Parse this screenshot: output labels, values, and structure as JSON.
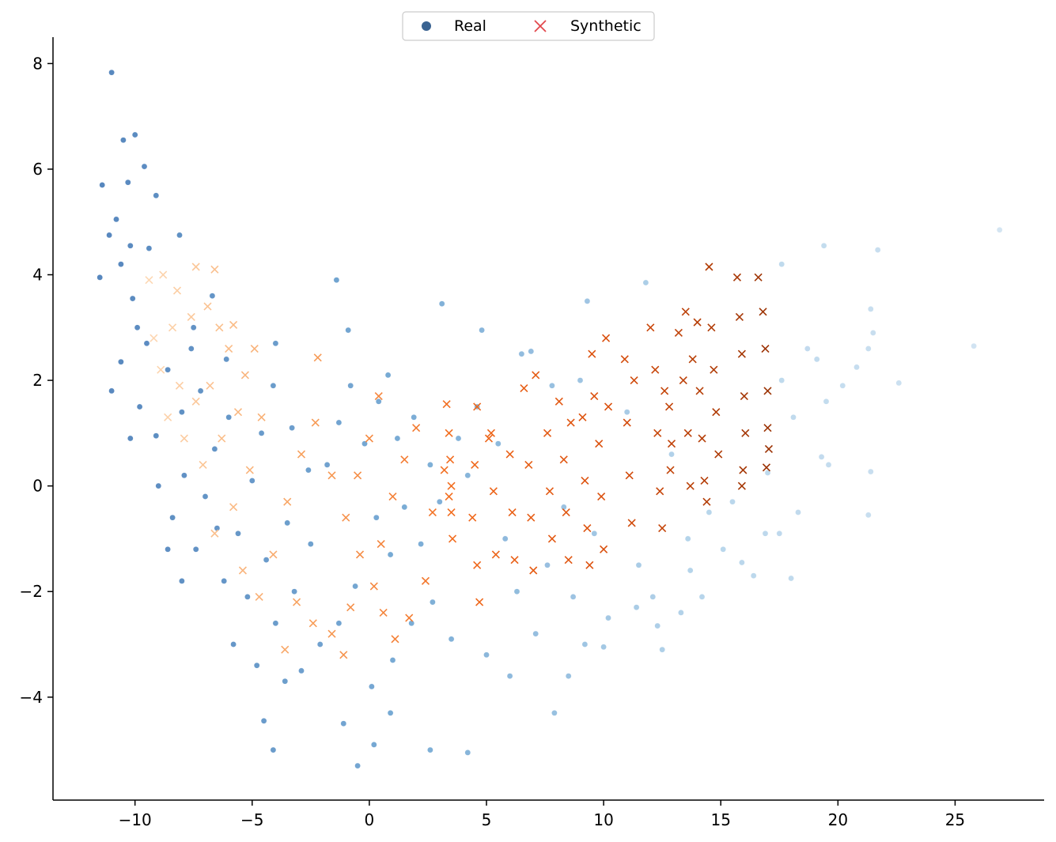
{
  "chart_data": {
    "type": "scatter",
    "title": "",
    "xlabel": "",
    "ylabel": "",
    "xlim": [
      -13.5,
      28.8
    ],
    "ylim": [
      -5.95,
      8.5
    ],
    "x_ticks": [
      -10,
      -5,
      0,
      5,
      10,
      15,
      20,
      25
    ],
    "y_ticks": [
      -4,
      -2,
      0,
      2,
      4,
      6,
      8
    ],
    "x_tick_labels": [
      "−10",
      "−5",
      "0",
      "5",
      "10",
      "15",
      "20",
      "25"
    ],
    "y_tick_labels": [
      "−4",
      "−2",
      "0",
      "2",
      "4",
      "6",
      "8"
    ],
    "grid": false,
    "legend": {
      "placement": "top-center",
      "entries": [
        {
          "label": "Real",
          "marker": "circle",
          "color": "#3a6391"
        },
        {
          "label": "Synthetic",
          "marker": "x",
          "color": "#e2474c"
        }
      ]
    },
    "colors": {
      "real_dark": "#1f5fa8",
      "real_light": "#c6dcee",
      "synthetic_light": "#fdd9b5",
      "synthetic_mid": "#f26b1d",
      "synthetic_dark": "#9b3203"
    },
    "series": [
      {
        "name": "Real",
        "marker": "circle",
        "points": [
          [
            -11,
            7.83
          ],
          [
            -10.5,
            6.55
          ],
          [
            -10,
            6.65
          ],
          [
            -9.6,
            6.05
          ],
          [
            -10.3,
            5.75
          ],
          [
            -11.4,
            5.7
          ],
          [
            -9.1,
            5.5
          ],
          [
            -10.8,
            5.05
          ],
          [
            -10.2,
            4.55
          ],
          [
            -8.1,
            4.75
          ],
          [
            -11.1,
            4.75
          ],
          [
            -9.4,
            4.5
          ],
          [
            -10.6,
            4.2
          ],
          [
            -11.5,
            3.95
          ],
          [
            -10.1,
            3.55
          ],
          [
            -9.9,
            3.0
          ],
          [
            -10.6,
            2.35
          ],
          [
            -11.0,
            1.8
          ],
          [
            -9.5,
            2.7
          ],
          [
            -8.6,
            2.2
          ],
          [
            -9.8,
            1.5
          ],
          [
            -10.2,
            0.9
          ],
          [
            -9.1,
            0.95
          ],
          [
            -8.0,
            1.4
          ],
          [
            -7.6,
            2.6
          ],
          [
            -7.2,
            1.8
          ],
          [
            -7.9,
            0.2
          ],
          [
            -9.0,
            0.0
          ],
          [
            -8.4,
            -0.6
          ],
          [
            -7.0,
            -0.2
          ],
          [
            -6.6,
            0.7
          ],
          [
            -6.0,
            1.3
          ],
          [
            -6.5,
            -0.8
          ],
          [
            -7.4,
            -1.2
          ],
          [
            -8.6,
            -1.2
          ],
          [
            -8.0,
            -1.8
          ],
          [
            -6.2,
            -1.8
          ],
          [
            -5.6,
            -0.9
          ],
          [
            -5.0,
            0.1
          ],
          [
            -4.6,
            1.0
          ],
          [
            -4.1,
            1.9
          ],
          [
            -3.3,
            1.1
          ],
          [
            -2.6,
            0.3
          ],
          [
            -3.5,
            -0.7
          ],
          [
            -4.4,
            -1.4
          ],
          [
            -5.2,
            -2.1
          ],
          [
            -5.8,
            -3.0
          ],
          [
            -4.8,
            -3.4
          ],
          [
            -4.0,
            -2.6
          ],
          [
            -3.2,
            -2.0
          ],
          [
            -2.5,
            -1.1
          ],
          [
            -1.8,
            0.4
          ],
          [
            -1.3,
            1.2
          ],
          [
            -0.8,
            1.9
          ],
          [
            -1.4,
            3.9
          ],
          [
            -0.9,
            2.95
          ],
          [
            -4.0,
            2.7
          ],
          [
            -6.1,
            2.4
          ],
          [
            -6.7,
            3.6
          ],
          [
            -7.5,
            3.0
          ],
          [
            -0.2,
            0.8
          ],
          [
            0.4,
            1.6
          ],
          [
            0.8,
            2.1
          ],
          [
            1.2,
            0.9
          ],
          [
            1.9,
            1.3
          ],
          [
            2.6,
            0.4
          ],
          [
            0.3,
            -0.6
          ],
          [
            0.9,
            -1.3
          ],
          [
            1.5,
            -0.4
          ],
          [
            2.2,
            -1.1
          ],
          [
            3.0,
            -0.3
          ],
          [
            3.8,
            0.9
          ],
          [
            -0.6,
            -1.9
          ],
          [
            -1.3,
            -2.6
          ],
          [
            -2.1,
            -3.0
          ],
          [
            -2.9,
            -3.5
          ],
          [
            -3.6,
            -3.7
          ],
          [
            -4.5,
            -4.45
          ],
          [
            -4.1,
            -5.0
          ],
          [
            -1.1,
            -4.5
          ],
          [
            -0.5,
            -5.3
          ],
          [
            0.2,
            -4.9
          ],
          [
            0.9,
            -4.3
          ],
          [
            2.6,
            -5.0
          ],
          [
            4.2,
            -5.05
          ],
          [
            0.1,
            -3.8
          ],
          [
            1.0,
            -3.3
          ],
          [
            1.8,
            -2.6
          ],
          [
            2.7,
            -2.2
          ],
          [
            3.5,
            -2.9
          ],
          [
            3.1,
            3.45
          ],
          [
            4.8,
            2.95
          ],
          [
            4.6,
            1.5
          ],
          [
            4.2,
            0.2
          ],
          [
            5.5,
            0.8
          ],
          [
            5.8,
            -1.0
          ],
          [
            6.3,
            -2.0
          ],
          [
            5.0,
            -3.2
          ],
          [
            6.0,
            -3.6
          ],
          [
            7.1,
            -2.8
          ],
          [
            7.6,
            -1.5
          ],
          [
            8.3,
            -0.4
          ],
          [
            6.5,
            2.5
          ],
          [
            7.8,
            1.9
          ],
          [
            9.3,
            3.5
          ],
          [
            9.0,
            2.0
          ],
          [
            9.6,
            -0.9
          ],
          [
            10.2,
            -2.5
          ],
          [
            9.2,
            -3.0
          ],
          [
            8.5,
            -3.6
          ],
          [
            7.9,
            -4.3
          ],
          [
            10.0,
            -3.05
          ],
          [
            11.0,
            1.4
          ],
          [
            11.5,
            -1.5
          ],
          [
            12.1,
            -2.1
          ],
          [
            12.3,
            -2.65
          ],
          [
            12.5,
            -3.1
          ],
          [
            13.3,
            -2.4
          ],
          [
            11.8,
            3.85
          ],
          [
            12.9,
            0.6
          ],
          [
            13.6,
            -1.0
          ],
          [
            14.5,
            -0.5
          ],
          [
            15.1,
            -1.2
          ],
          [
            15.5,
            -0.3
          ],
          [
            15.9,
            -1.45
          ],
          [
            16.4,
            -1.7
          ],
          [
            17.0,
            0.25
          ],
          [
            17.5,
            -0.9
          ],
          [
            17.6,
            4.2
          ],
          [
            17.6,
            2.0
          ],
          [
            18.1,
            1.3
          ],
          [
            18.3,
            -0.5
          ],
          [
            18.7,
            2.6
          ],
          [
            19.1,
            2.4
          ],
          [
            19.4,
            4.55
          ],
          [
            19.5,
            1.6
          ],
          [
            19.6,
            0.4
          ],
          [
            19.3,
            0.55
          ],
          [
            20.2,
            1.9
          ],
          [
            20.8,
            2.25
          ],
          [
            21.3,
            2.6
          ],
          [
            21.4,
            3.35
          ],
          [
            21.5,
            2.9
          ],
          [
            21.7,
            4.47
          ],
          [
            21.4,
            0.27
          ],
          [
            21.3,
            -0.55
          ],
          [
            22.6,
            1.95
          ],
          [
            25.8,
            2.65
          ],
          [
            26.9,
            4.85
          ],
          [
            18.0,
            -1.75
          ],
          [
            16.9,
            -0.9
          ],
          [
            14.2,
            -2.1
          ],
          [
            13.7,
            -1.6
          ],
          [
            11.4,
            -2.3
          ],
          [
            8.7,
            -2.1
          ],
          [
            6.9,
            2.55
          ]
        ]
      },
      {
        "name": "Synthetic",
        "marker": "x",
        "points": [
          [
            -9.4,
            3.9
          ],
          [
            -8.8,
            4.0
          ],
          [
            -8.2,
            3.7
          ],
          [
            -7.4,
            4.15
          ],
          [
            -6.6,
            4.1
          ],
          [
            -6.9,
            3.4
          ],
          [
            -7.6,
            3.2
          ],
          [
            -8.4,
            3.0
          ],
          [
            -9.2,
            2.8
          ],
          [
            -8.9,
            2.2
          ],
          [
            -8.1,
            1.9
          ],
          [
            -7.4,
            1.6
          ],
          [
            -6.8,
            1.9
          ],
          [
            -6.0,
            2.6
          ],
          [
            -5.3,
            2.1
          ],
          [
            -5.6,
            1.4
          ],
          [
            -6.3,
            0.9
          ],
          [
            -7.1,
            0.4
          ],
          [
            -7.9,
            0.9
          ],
          [
            -8.6,
            1.3
          ],
          [
            -6.4,
            3.0
          ],
          [
            -5.8,
            3.05
          ],
          [
            -4.9,
            2.6
          ],
          [
            -4.6,
            1.3
          ],
          [
            -5.1,
            0.3
          ],
          [
            -5.8,
            -0.4
          ],
          [
            -6.6,
            -0.9
          ],
          [
            -5.4,
            -1.6
          ],
          [
            -4.7,
            -2.1
          ],
          [
            -4.1,
            -1.3
          ],
          [
            -3.5,
            -0.3
          ],
          [
            -2.9,
            0.6
          ],
          [
            -2.3,
            1.2
          ],
          [
            -2.2,
            2.43
          ],
          [
            -1.6,
            0.2
          ],
          [
            -1.0,
            -0.6
          ],
          [
            -0.4,
            -1.3
          ],
          [
            0.2,
            -1.9
          ],
          [
            -0.8,
            -2.3
          ],
          [
            -1.6,
            -2.8
          ],
          [
            -2.4,
            -2.6
          ],
          [
            -3.1,
            -2.2
          ],
          [
            -3.6,
            -3.1
          ],
          [
            -1.1,
            -3.2
          ],
          [
            0.5,
            -1.1
          ],
          [
            1.0,
            -0.2
          ],
          [
            1.5,
            0.5
          ],
          [
            2.0,
            1.1
          ],
          [
            0.4,
            1.7
          ],
          [
            0.0,
            0.9
          ],
          [
            -0.5,
            0.2
          ],
          [
            2.7,
            -0.5
          ],
          [
            3.2,
            0.3
          ],
          [
            2.4,
            -1.8
          ],
          [
            1.7,
            -2.5
          ],
          [
            1.1,
            -2.9
          ],
          [
            0.6,
            -2.4
          ],
          [
            3.3,
            1.55
          ],
          [
            3.4,
            1.0
          ],
          [
            3.45,
            0.5
          ],
          [
            3.5,
            0.0
          ],
          [
            3.5,
            -0.5
          ],
          [
            3.55,
            -1.0
          ],
          [
            3.4,
            -0.2
          ],
          [
            4.5,
            0.4
          ],
          [
            4.4,
            -0.6
          ],
          [
            4.6,
            -1.5
          ],
          [
            4.7,
            -2.2
          ],
          [
            4.6,
            1.5
          ],
          [
            5.1,
            0.9
          ],
          [
            5.3,
            -0.1
          ],
          [
            5.4,
            -1.3
          ],
          [
            5.2,
            1.0
          ],
          [
            6.0,
            0.6
          ],
          [
            6.1,
            -0.5
          ],
          [
            6.2,
            -1.4
          ],
          [
            6.6,
            1.85
          ],
          [
            6.8,
            0.4
          ],
          [
            6.9,
            -0.6
          ],
          [
            7.0,
            -1.6
          ],
          [
            7.1,
            2.1
          ],
          [
            7.6,
            1.0
          ],
          [
            7.7,
            -0.1
          ],
          [
            7.8,
            -1.0
          ],
          [
            8.1,
            1.6
          ],
          [
            8.3,
            0.5
          ],
          [
            8.4,
            -0.5
          ],
          [
            8.5,
            -1.4
          ],
          [
            8.6,
            1.2
          ],
          [
            9.1,
            1.3
          ],
          [
            9.2,
            0.1
          ],
          [
            9.3,
            -0.8
          ],
          [
            9.4,
            -1.5
          ],
          [
            9.5,
            2.5
          ],
          [
            9.6,
            1.7
          ],
          [
            9.8,
            0.8
          ],
          [
            9.9,
            -0.2
          ],
          [
            10.0,
            -1.2
          ],
          [
            10.1,
            2.8
          ],
          [
            10.2,
            1.5
          ],
          [
            10.9,
            2.4
          ],
          [
            11.0,
            1.2
          ],
          [
            11.1,
            0.2
          ],
          [
            11.2,
            -0.7
          ],
          [
            11.3,
            2.0
          ],
          [
            12.0,
            3.0
          ],
          [
            12.2,
            2.2
          ],
          [
            12.3,
            1.0
          ],
          [
            12.4,
            -0.1
          ],
          [
            12.5,
            -0.8
          ],
          [
            12.6,
            1.8
          ],
          [
            12.8,
            1.5
          ],
          [
            12.9,
            0.8
          ],
          [
            12.85,
            0.3
          ],
          [
            13.2,
            2.9
          ],
          [
            13.4,
            2.0
          ],
          [
            13.6,
            1.0
          ],
          [
            13.5,
            3.3
          ],
          [
            13.7,
            0.0
          ],
          [
            13.8,
            2.4
          ],
          [
            14.0,
            3.1
          ],
          [
            14.1,
            1.8
          ],
          [
            14.2,
            0.9
          ],
          [
            14.3,
            0.1
          ],
          [
            14.4,
            -0.3
          ],
          [
            14.5,
            4.15
          ],
          [
            14.6,
            3.0
          ],
          [
            14.7,
            2.2
          ],
          [
            14.8,
            1.4
          ],
          [
            14.9,
            0.6
          ],
          [
            15.7,
            3.95
          ],
          [
            15.8,
            3.2
          ],
          [
            15.9,
            2.5
          ],
          [
            16.0,
            1.7
          ],
          [
            16.05,
            1.0
          ],
          [
            15.95,
            0.3
          ],
          [
            16.6,
            3.95
          ],
          [
            16.8,
            3.3
          ],
          [
            16.9,
            2.6
          ],
          [
            17.0,
            1.8
          ],
          [
            17.0,
            1.1
          ],
          [
            16.95,
            0.35
          ],
          [
            17.05,
            0.7
          ],
          [
            15.9,
            0.0
          ]
        ]
      }
    ]
  }
}
